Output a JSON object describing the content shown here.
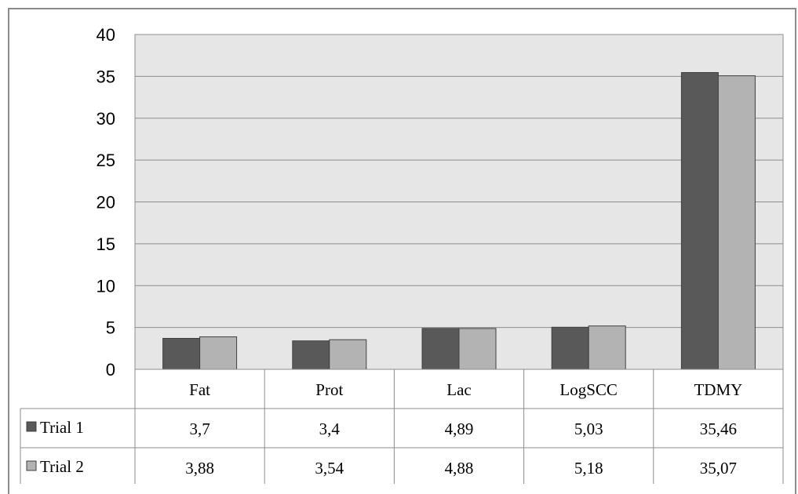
{
  "chart_data": {
    "type": "bar",
    "categories": [
      "Fat",
      "Prot",
      "Lac",
      "LogSCC",
      "TDMY"
    ],
    "series": [
      {
        "name": "Trial 1",
        "values": [
          3.7,
          3.4,
          4.89,
          5.03,
          35.46
        ],
        "labels": [
          "3,7",
          "3,4",
          "4,89",
          "5,03",
          "35,46"
        ],
        "color": "#595959"
      },
      {
        "name": "Trial 2",
        "values": [
          3.88,
          3.54,
          4.88,
          5.18,
          35.07
        ],
        "labels": [
          "3,88",
          "3,54",
          "4,88",
          "5,18",
          "35,07"
        ],
        "color": "#b3b3b3"
      }
    ],
    "ylim": [
      0,
      40
    ],
    "yticks": [
      "0",
      "5",
      "10",
      "15",
      "20",
      "25",
      "30",
      "35",
      "40"
    ],
    "grid": true,
    "plot_background": "#e6e6e6",
    "legend": "data-table"
  }
}
